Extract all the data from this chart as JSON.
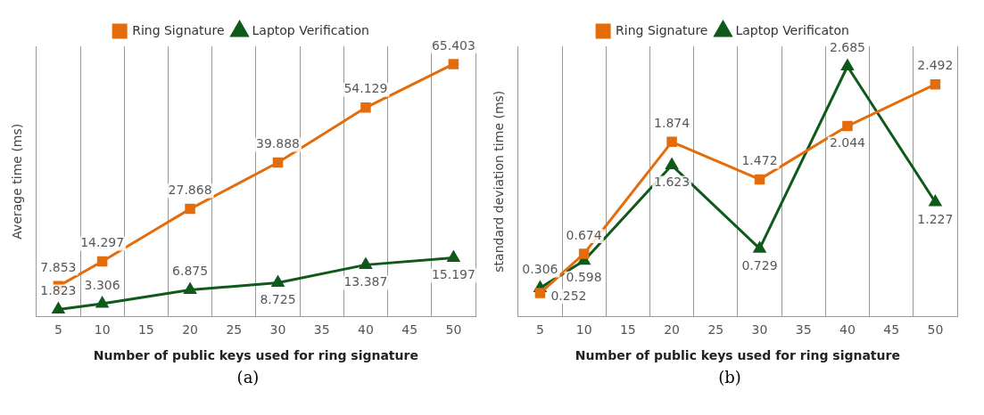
{
  "chart_data": [
    {
      "type": "line",
      "xlabel": "Number of public keys used for ring signature",
      "ylabel": "Average time (ms)",
      "categories": [
        "5",
        "10",
        "15",
        "20",
        "25",
        "30",
        "35",
        "40",
        "45",
        "50"
      ],
      "series": [
        {
          "name": "Ring Signature",
          "color": "#e46c0a",
          "marker": "square",
          "values": [
            7.853,
            14.297,
            null,
            27.868,
            null,
            39.888,
            null,
            54.129,
            null,
            65.403
          ]
        },
        {
          "name": "Laptop Verification",
          "color": "#0f5a1a",
          "marker": "triangle",
          "values": [
            1.823,
            3.306,
            null,
            6.875,
            null,
            8.725,
            null,
            13.387,
            null,
            15.197
          ]
        }
      ],
      "ylim": [
        0,
        70
      ],
      "tick_labels": "x",
      "grid": "x",
      "legend": "top",
      "data_labels": true,
      "annotations": [
        "(a)"
      ]
    },
    {
      "type": "line",
      "xlabel": "Number of public keys used for ring signature",
      "ylabel": "standard deviation time (ms)",
      "categories": [
        "5",
        "10",
        "15",
        "20",
        "25",
        "30",
        "35",
        "40",
        "45",
        "50"
      ],
      "series": [
        {
          "name": "Ring Signature",
          "color": "#e46c0a",
          "marker": "square",
          "values": [
            0.252,
            0.674,
            null,
            1.874,
            null,
            1.472,
            null,
            2.044,
            null,
            2.492
          ]
        },
        {
          "name": "Laptop Verificaton",
          "color": "#0f5a1a",
          "marker": "triangle",
          "values": [
            0.306,
            0.598,
            null,
            1.623,
            null,
            0.729,
            null,
            2.685,
            null,
            1.227
          ]
        }
      ],
      "ylim": [
        0,
        2.9
      ],
      "tick_labels": "x",
      "grid": "x",
      "legend": "top",
      "data_labels": true,
      "annotations": [
        "(b)"
      ]
    }
  ]
}
